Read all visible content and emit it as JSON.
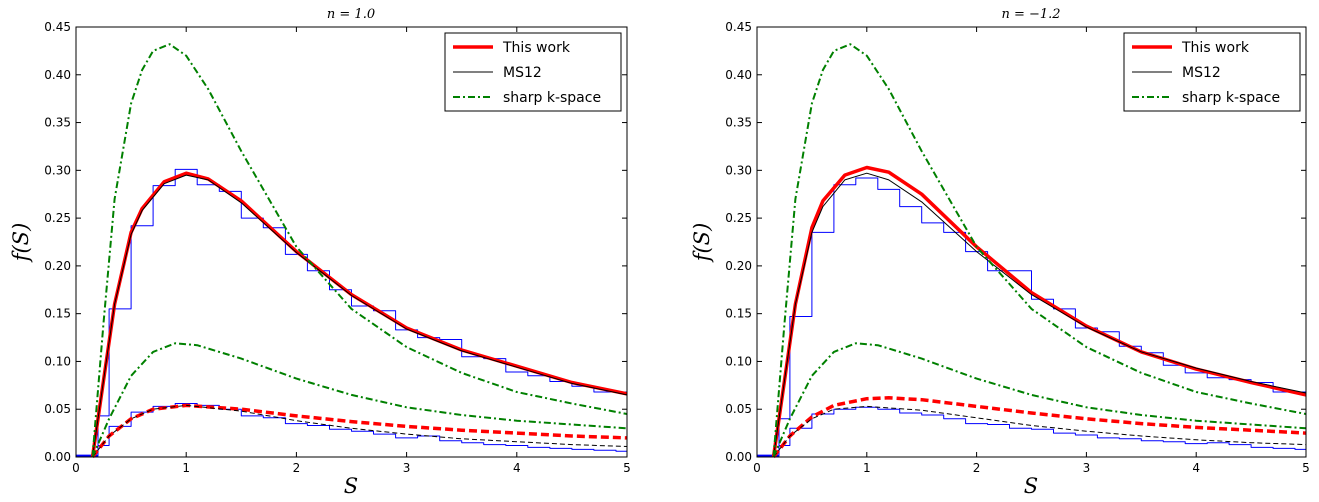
{
  "chart_data": [
    {
      "type": "line",
      "title": "n = 1.0",
      "xlabel": "S",
      "ylabel": "f(S)",
      "xlim": [
        0,
        5
      ],
      "ylim": [
        0,
        0.45
      ],
      "xticks": [
        "0",
        "1",
        "2",
        "3",
        "4",
        "5"
      ],
      "yticks": [
        "0.00",
        "0.05",
        "0.10",
        "0.15",
        "0.20",
        "0.25",
        "0.30",
        "0.35",
        "0.40",
        "0.45"
      ],
      "grid": false,
      "legend_position": "top-right",
      "legend": [
        {
          "label": "This work",
          "style": "solid-thick",
          "color": "#ff0000"
        },
        {
          "label": "MS12",
          "style": "solid-thin",
          "color": "#000000"
        },
        {
          "label": "sharp k-space",
          "style": "dash-dot",
          "color": "#008000"
        }
      ],
      "series": [
        {
          "name": "This work",
          "role": "total",
          "style": "solid-thick",
          "color": "#ff0000",
          "x": [
            0.15,
            0.25,
            0.35,
            0.5,
            0.6,
            0.8,
            1.0,
            1.2,
            1.5,
            2.0,
            2.5,
            3.0,
            3.5,
            4.0,
            4.5,
            5.0
          ],
          "y": [
            0.0,
            0.08,
            0.16,
            0.235,
            0.26,
            0.288,
            0.297,
            0.291,
            0.268,
            0.215,
            0.17,
            0.135,
            0.112,
            0.095,
            0.078,
            0.066
          ]
        },
        {
          "name": "MS12",
          "role": "total",
          "style": "solid-thin",
          "color": "#000000",
          "x": [
            0.15,
            0.25,
            0.35,
            0.5,
            0.6,
            0.8,
            1.0,
            1.2,
            1.5,
            2.0,
            2.5,
            3.0,
            3.5,
            4.0,
            4.5,
            5.0
          ],
          "y": [
            0.0,
            0.08,
            0.16,
            0.233,
            0.258,
            0.286,
            0.295,
            0.29,
            0.266,
            0.214,
            0.169,
            0.134,
            0.111,
            0.094,
            0.077,
            0.065
          ]
        },
        {
          "name": "sharp k-space",
          "role": "total",
          "style": "dash-dot",
          "color": "#008000",
          "x": [
            0.15,
            0.25,
            0.35,
            0.5,
            0.6,
            0.7,
            0.85,
            1.0,
            1.2,
            1.5,
            2.0,
            2.5,
            3.0,
            3.5,
            4.0,
            4.5,
            5.0
          ],
          "y": [
            0.0,
            0.14,
            0.27,
            0.37,
            0.405,
            0.425,
            0.432,
            0.42,
            0.385,
            0.32,
            0.22,
            0.155,
            0.115,
            0.088,
            0.068,
            0.056,
            0.045
          ]
        },
        {
          "name": "This work",
          "role": "lower",
          "style": "dashed-thick",
          "color": "#ff0000",
          "x": [
            0.15,
            0.3,
            0.5,
            0.7,
            1.0,
            1.5,
            2.0,
            2.5,
            3.0,
            3.5,
            4.0,
            4.5,
            5.0
          ],
          "y": [
            0.0,
            0.022,
            0.04,
            0.05,
            0.054,
            0.05,
            0.043,
            0.037,
            0.032,
            0.028,
            0.025,
            0.022,
            0.02
          ]
        },
        {
          "name": "MS12",
          "role": "lower",
          "style": "dashed-thin",
          "color": "#000000",
          "x": [
            0.15,
            0.3,
            0.5,
            0.7,
            1.0,
            1.5,
            2.0,
            2.5,
            3.0,
            3.5,
            4.0,
            4.5,
            5.0
          ],
          "y": [
            0.0,
            0.022,
            0.04,
            0.05,
            0.054,
            0.048,
            0.038,
            0.03,
            0.024,
            0.019,
            0.016,
            0.013,
            0.011
          ]
        },
        {
          "name": "sharp k-space",
          "role": "lower",
          "style": "dash-dot",
          "color": "#008000",
          "x": [
            0.15,
            0.3,
            0.5,
            0.7,
            0.9,
            1.1,
            1.5,
            2.0,
            2.5,
            3.0,
            3.5,
            4.0,
            4.5,
            5.0
          ],
          "y": [
            0.0,
            0.04,
            0.085,
            0.11,
            0.119,
            0.117,
            0.103,
            0.082,
            0.065,
            0.052,
            0.044,
            0.038,
            0.034,
            0.03
          ]
        },
        {
          "name": "histogram",
          "role": "total",
          "style": "step",
          "color": "#0000ff",
          "x": [
            0.0,
            0.1,
            0.2,
            0.3,
            0.4,
            0.5,
            0.6,
            0.7,
            0.8,
            0.9,
            1.0,
            1.1,
            1.2,
            1.3,
            1.4,
            1.5,
            1.6,
            1.7,
            1.8,
            1.9,
            2.0,
            2.1,
            2.2,
            2.3,
            2.4,
            2.5,
            2.6,
            2.7,
            2.8,
            2.9,
            3.0,
            3.1,
            3.2,
            3.3,
            3.4,
            3.5,
            3.6,
            3.7,
            3.8,
            3.9,
            4.0,
            4.1,
            4.2,
            4.3,
            4.4,
            4.5,
            4.6,
            4.7,
            4.8,
            4.9
          ],
          "y": [
            0.002,
            0.002,
            0.043,
            0.155,
            0.155,
            0.242,
            0.242,
            0.284,
            0.284,
            0.301,
            0.301,
            0.285,
            0.285,
            0.278,
            0.278,
            0.25,
            0.25,
            0.24,
            0.24,
            0.212,
            0.212,
            0.195,
            0.195,
            0.175,
            0.175,
            0.158,
            0.158,
            0.153,
            0.153,
            0.133,
            0.133,
            0.125,
            0.125,
            0.123,
            0.123,
            0.105,
            0.105,
            0.103,
            0.103,
            0.089,
            0.089,
            0.085,
            0.085,
            0.079,
            0.079,
            0.074,
            0.074,
            0.068,
            0.068,
            0.068
          ]
        },
        {
          "name": "histogram",
          "role": "lower",
          "style": "step",
          "color": "#0000ff",
          "x": [
            0.0,
            0.1,
            0.2,
            0.3,
            0.4,
            0.5,
            0.6,
            0.7,
            0.8,
            0.9,
            1.0,
            1.1,
            1.2,
            1.3,
            1.4,
            1.5,
            1.6,
            1.7,
            1.8,
            1.9,
            2.0,
            2.1,
            2.2,
            2.3,
            2.4,
            2.5,
            2.6,
            2.7,
            2.8,
            2.9,
            3.0,
            3.1,
            3.2,
            3.3,
            3.4,
            3.5,
            3.6,
            3.7,
            3.8,
            3.9,
            4.0,
            4.1,
            4.2,
            4.3,
            4.4,
            4.5,
            4.6,
            4.7,
            4.8,
            4.9
          ],
          "y": [
            0.001,
            0.001,
            0.012,
            0.032,
            0.032,
            0.047,
            0.047,
            0.053,
            0.053,
            0.056,
            0.056,
            0.054,
            0.054,
            0.05,
            0.05,
            0.043,
            0.043,
            0.041,
            0.041,
            0.035,
            0.035,
            0.033,
            0.033,
            0.029,
            0.029,
            0.027,
            0.027,
            0.024,
            0.024,
            0.02,
            0.02,
            0.022,
            0.022,
            0.017,
            0.017,
            0.015,
            0.015,
            0.013,
            0.013,
            0.012,
            0.012,
            0.01,
            0.01,
            0.009,
            0.009,
            0.008,
            0.008,
            0.007,
            0.007,
            0.006
          ]
        }
      ]
    },
    {
      "type": "line",
      "title": "n = −1.2",
      "xlabel": "S",
      "ylabel": "f(S)",
      "xlim": [
        0,
        5
      ],
      "ylim": [
        0,
        0.45
      ],
      "xticks": [
        "0",
        "1",
        "2",
        "3",
        "4",
        "5"
      ],
      "yticks": [
        "0.00",
        "0.05",
        "0.10",
        "0.15",
        "0.20",
        "0.25",
        "0.30",
        "0.35",
        "0.40",
        "0.45"
      ],
      "grid": false,
      "legend_position": "top-right",
      "legend": [
        {
          "label": "This work",
          "style": "solid-thick",
          "color": "#ff0000"
        },
        {
          "label": "MS12",
          "style": "solid-thin",
          "color": "#000000"
        },
        {
          "label": "sharp k-space",
          "style": "dash-dot",
          "color": "#008000"
        }
      ],
      "series": [
        {
          "name": "This work",
          "role": "total",
          "style": "solid-thick",
          "color": "#ff0000",
          "x": [
            0.15,
            0.25,
            0.35,
            0.5,
            0.6,
            0.8,
            1.0,
            1.2,
            1.5,
            2.0,
            2.5,
            3.0,
            3.5,
            4.0,
            4.5,
            5.0
          ],
          "y": [
            0.0,
            0.08,
            0.16,
            0.24,
            0.268,
            0.295,
            0.303,
            0.298,
            0.275,
            0.22,
            0.172,
            0.137,
            0.11,
            0.092,
            0.078,
            0.065
          ]
        },
        {
          "name": "MS12",
          "role": "total",
          "style": "solid-thin",
          "color": "#000000",
          "x": [
            0.15,
            0.25,
            0.35,
            0.5,
            0.6,
            0.8,
            1.0,
            1.2,
            1.5,
            2.0,
            2.5,
            3.0,
            3.5,
            4.0,
            4.5,
            5.0
          ],
          "y": [
            0.0,
            0.08,
            0.16,
            0.235,
            0.262,
            0.29,
            0.297,
            0.29,
            0.267,
            0.215,
            0.17,
            0.136,
            0.11,
            0.093,
            0.079,
            0.067
          ]
        },
        {
          "name": "sharp k-space",
          "role": "total",
          "style": "dash-dot",
          "color": "#008000",
          "x": [
            0.15,
            0.25,
            0.35,
            0.5,
            0.6,
            0.7,
            0.85,
            1.0,
            1.2,
            1.5,
            2.0,
            2.5,
            3.0,
            3.5,
            4.0,
            4.5,
            5.0
          ],
          "y": [
            0.0,
            0.14,
            0.27,
            0.37,
            0.405,
            0.425,
            0.432,
            0.42,
            0.385,
            0.32,
            0.22,
            0.155,
            0.115,
            0.088,
            0.068,
            0.056,
            0.045
          ]
        },
        {
          "name": "This work",
          "role": "lower",
          "style": "dashed-thick",
          "color": "#ff0000",
          "x": [
            0.15,
            0.3,
            0.5,
            0.7,
            1.0,
            1.2,
            1.5,
            2.0,
            2.5,
            3.0,
            3.5,
            4.0,
            4.5,
            5.0
          ],
          "y": [
            0.0,
            0.022,
            0.042,
            0.054,
            0.061,
            0.062,
            0.06,
            0.053,
            0.046,
            0.04,
            0.035,
            0.031,
            0.028,
            0.025
          ]
        },
        {
          "name": "MS12",
          "role": "lower",
          "style": "dashed-thin",
          "color": "#000000",
          "x": [
            0.15,
            0.3,
            0.5,
            0.7,
            1.0,
            1.5,
            2.0,
            2.5,
            3.0,
            3.5,
            4.0,
            4.5,
            5.0
          ],
          "y": [
            0.0,
            0.022,
            0.04,
            0.05,
            0.053,
            0.049,
            0.041,
            0.033,
            0.027,
            0.022,
            0.018,
            0.015,
            0.013
          ]
        },
        {
          "name": "sharp k-space",
          "role": "lower",
          "style": "dash-dot",
          "color": "#008000",
          "x": [
            0.15,
            0.3,
            0.5,
            0.7,
            0.9,
            1.1,
            1.5,
            2.0,
            2.5,
            3.0,
            3.5,
            4.0,
            4.5,
            5.0
          ],
          "y": [
            0.0,
            0.04,
            0.085,
            0.11,
            0.119,
            0.117,
            0.103,
            0.082,
            0.065,
            0.052,
            0.044,
            0.038,
            0.034,
            0.03
          ]
        },
        {
          "name": "histogram",
          "role": "total",
          "style": "step",
          "color": "#0000ff",
          "x": [
            0.0,
            0.1,
            0.2,
            0.3,
            0.4,
            0.5,
            0.6,
            0.7,
            0.8,
            0.9,
            1.0,
            1.1,
            1.2,
            1.3,
            1.4,
            1.5,
            1.6,
            1.7,
            1.8,
            1.9,
            2.0,
            2.1,
            2.2,
            2.3,
            2.4,
            2.5,
            2.6,
            2.7,
            2.8,
            2.9,
            3.0,
            3.1,
            3.2,
            3.3,
            3.4,
            3.5,
            3.6,
            3.7,
            3.8,
            3.9,
            4.0,
            4.1,
            4.2,
            4.3,
            4.4,
            4.5,
            4.6,
            4.7,
            4.8,
            4.9
          ],
          "y": [
            0.002,
            0.002,
            0.04,
            0.147,
            0.147,
            0.235,
            0.235,
            0.285,
            0.285,
            0.292,
            0.292,
            0.28,
            0.28,
            0.262,
            0.262,
            0.245,
            0.245,
            0.235,
            0.235,
            0.215,
            0.215,
            0.195,
            0.195,
            0.195,
            0.195,
            0.165,
            0.165,
            0.155,
            0.155,
            0.135,
            0.135,
            0.131,
            0.131,
            0.116,
            0.116,
            0.109,
            0.109,
            0.096,
            0.096,
            0.088,
            0.088,
            0.083,
            0.083,
            0.081,
            0.081,
            0.078,
            0.078,
            0.068,
            0.068,
            0.068
          ]
        },
        {
          "name": "histogram",
          "role": "lower",
          "style": "step",
          "color": "#0000ff",
          "x": [
            0.0,
            0.1,
            0.2,
            0.3,
            0.4,
            0.5,
            0.6,
            0.7,
            0.8,
            0.9,
            1.0,
            1.1,
            1.2,
            1.3,
            1.4,
            1.5,
            1.6,
            1.7,
            1.8,
            1.9,
            2.0,
            2.1,
            2.2,
            2.3,
            2.4,
            2.5,
            2.6,
            2.7,
            2.8,
            2.9,
            3.0,
            3.1,
            3.2,
            3.3,
            3.4,
            3.5,
            3.6,
            3.7,
            3.8,
            3.9,
            4.0,
            4.1,
            4.2,
            4.3,
            4.4,
            4.5,
            4.6,
            4.7,
            4.8,
            4.9
          ],
          "y": [
            0.001,
            0.001,
            0.012,
            0.03,
            0.03,
            0.045,
            0.045,
            0.05,
            0.05,
            0.052,
            0.052,
            0.05,
            0.05,
            0.046,
            0.046,
            0.044,
            0.044,
            0.04,
            0.04,
            0.035,
            0.035,
            0.034,
            0.034,
            0.03,
            0.03,
            0.029,
            0.029,
            0.025,
            0.025,
            0.023,
            0.023,
            0.02,
            0.02,
            0.019,
            0.019,
            0.017,
            0.017,
            0.016,
            0.016,
            0.014,
            0.014,
            0.015,
            0.015,
            0.013,
            0.013,
            0.01,
            0.01,
            0.009,
            0.009,
            0.008
          ]
        }
      ]
    }
  ]
}
